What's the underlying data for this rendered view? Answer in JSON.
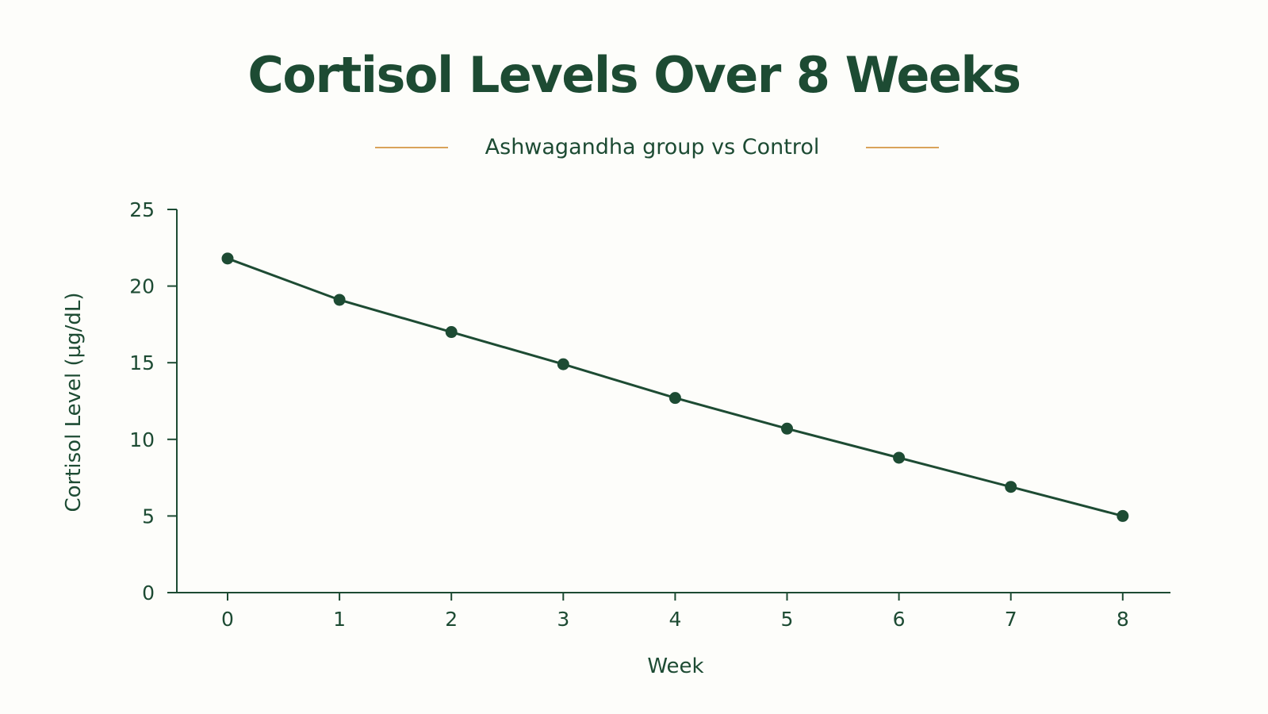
{
  "chart_data": {
    "type": "line",
    "title": "Cortisol Levels Over 8 Weeks",
    "subtitle": "Ashwagandha group vs Control",
    "xlabel": "Week",
    "ylabel": "Cortisol Level (µg/dL)",
    "x": [
      0,
      1,
      2,
      3,
      4,
      5,
      6,
      7,
      8
    ],
    "series": [
      {
        "values": [
          21.8,
          19.1,
          17.0,
          14.9,
          12.7,
          10.7,
          8.8,
          6.9,
          5.0
        ]
      }
    ],
    "xticks": [
      "0",
      "1",
      "2",
      "3",
      "4",
      "5",
      "6",
      "7",
      "8"
    ],
    "yticks": [
      "0",
      "5",
      "10",
      "15",
      "20",
      "25"
    ],
    "xlim": [
      -0.5,
      8.5
    ],
    "ylim": [
      0,
      25
    ],
    "grid": false,
    "legend": "none",
    "colors": {
      "line": "#1d4b33",
      "accent": "#d9a35a",
      "text": "#1d4b33",
      "background": "#fdfdfa"
    }
  }
}
